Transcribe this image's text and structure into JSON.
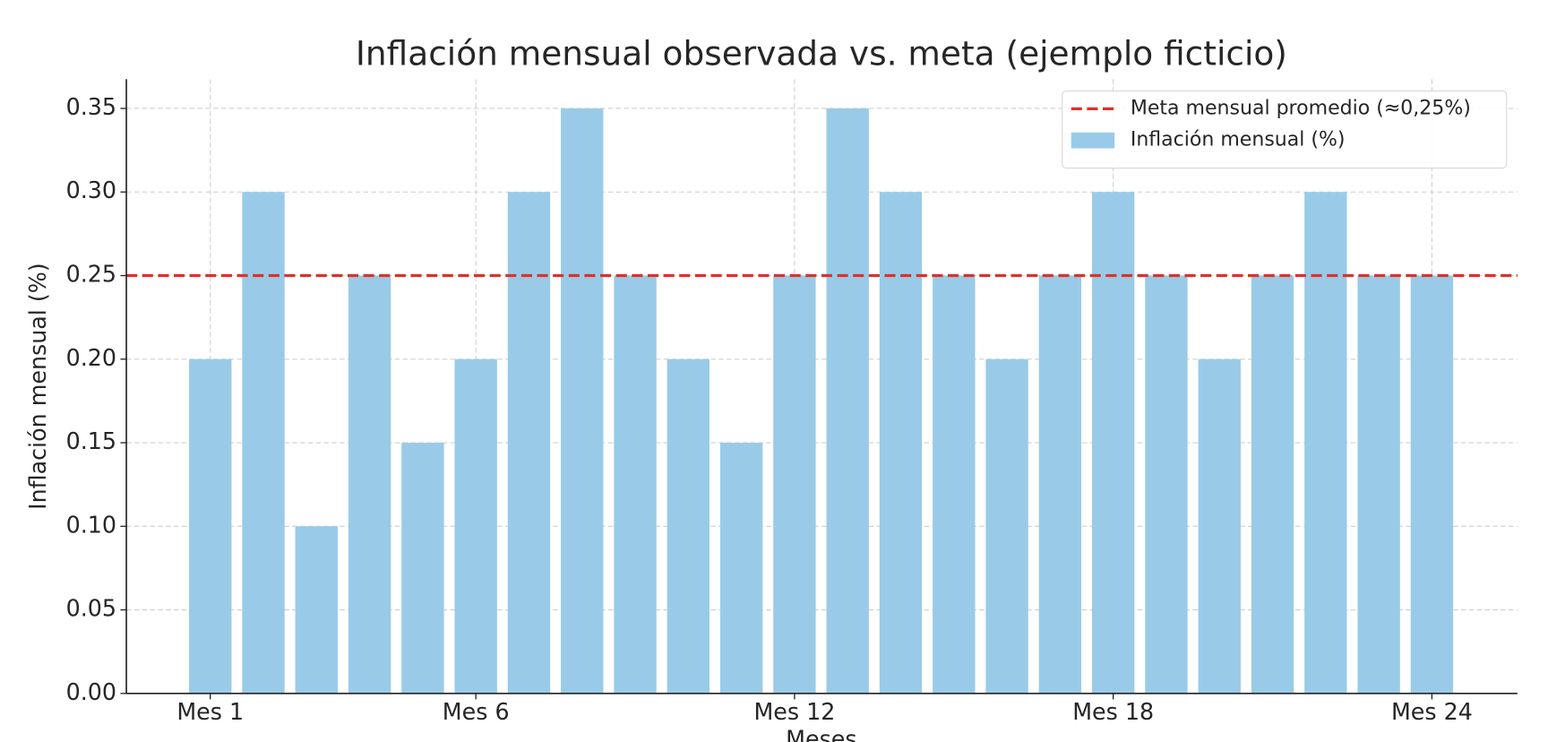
{
  "chart_data": {
    "type": "bar",
    "title": "Inflación mensual observada vs. meta (ejemplo ficticio)",
    "x_label": "Meses",
    "y_label": "Inflación mensual (%)",
    "categories": [
      "Mes 1",
      null,
      null,
      null,
      null,
      "Mes 6",
      null,
      null,
      null,
      null,
      null,
      "Mes 12",
      null,
      null,
      null,
      null,
      null,
      "Mes 18",
      null,
      null,
      null,
      null,
      null,
      "Mes 24"
    ],
    "series": [
      {
        "name": "Inflación mensual (%)",
        "color": "#99cbe8",
        "values": [
          0.2,
          0.3,
          0.1,
          0.25,
          0.15,
          0.2,
          0.3,
          0.35,
          0.25,
          0.2,
          0.15,
          0.25,
          0.35,
          0.3,
          0.25,
          0.2,
          0.25,
          0.3,
          0.25,
          0.2,
          0.25,
          0.3,
          0.25,
          0.25
        ]
      }
    ],
    "reference_lines": [
      {
        "name": "Meta mensual promedio (≈0,25%)",
        "value": 0.25,
        "color": "#e0302a",
        "style": "dashed"
      }
    ],
    "ylim": [
      0,
      0.3675
    ],
    "yticks": [
      {
        "value": 0,
        "label": "0.00"
      },
      0.05,
      {
        "value": 0.1,
        "label": "0.10"
      },
      0.15,
      {
        "value": 0.2,
        "label": "0.20"
      },
      0.25,
      {
        "value": 0.3,
        "label": "0.30"
      },
      0.35
    ],
    "grid": true,
    "legend_position": "upper right"
  }
}
